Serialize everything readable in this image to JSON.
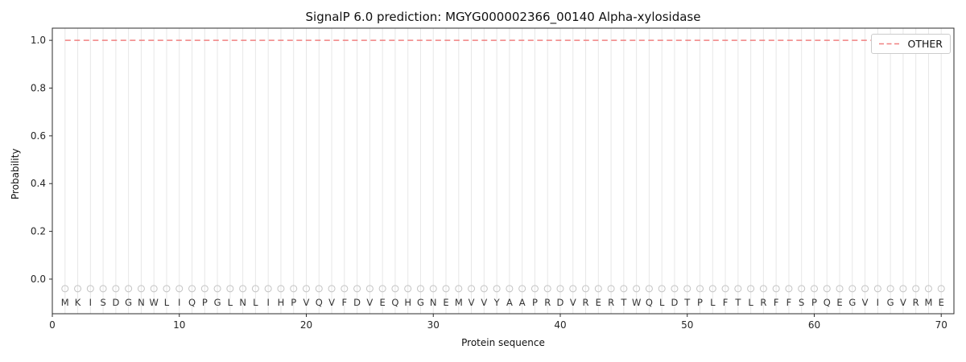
{
  "chart_data": {
    "type": "line",
    "title": "SignalP 6.0 prediction: MGYG000002366_00140 Alpha-xylosidase",
    "xlabel": "Protein sequence",
    "ylabel": "Probability",
    "xlim": [
      0,
      71
    ],
    "ylim": [
      -0.145,
      1.051
    ],
    "xticks": [
      0,
      10,
      20,
      30,
      40,
      50,
      60,
      70
    ],
    "yticks": [
      "0.0",
      "0.2",
      "0.4",
      "0.6",
      "0.8",
      "1.0"
    ],
    "grid": "vertical-per-residue",
    "legend_position": "upper right",
    "sequence": [
      "M",
      "K",
      "I",
      "S",
      "D",
      "G",
      "N",
      "W",
      "L",
      "I",
      "Q",
      "P",
      "G",
      "L",
      "N",
      "L",
      "I",
      "H",
      "P",
      "V",
      "Q",
      "V",
      "F",
      "D",
      "V",
      "E",
      "Q",
      "H",
      "G",
      "N",
      "E",
      "M",
      "V",
      "V",
      "Y",
      "A",
      "A",
      "P",
      "R",
      "D",
      "V",
      "R",
      "E",
      "R",
      "T",
      "W",
      "Q",
      "L",
      "D",
      "T",
      "P",
      "L",
      "F",
      "T",
      "L",
      "R",
      "F",
      "F",
      "S",
      "P",
      "Q",
      "E",
      "G",
      "V",
      "I",
      "G",
      "V",
      "R",
      "M",
      "E"
    ],
    "series": [
      {
        "name": "OTHER",
        "color": "#f08080",
        "line_style": "dashed",
        "values": [
          1.0,
          1.0,
          1.0,
          1.0,
          1.0,
          1.0,
          1.0,
          1.0,
          1.0,
          1.0,
          1.0,
          1.0,
          1.0,
          1.0,
          1.0,
          1.0,
          1.0,
          1.0,
          1.0,
          1.0,
          1.0,
          1.0,
          1.0,
          1.0,
          1.0,
          1.0,
          1.0,
          1.0,
          1.0,
          1.0,
          1.0,
          1.0,
          1.0,
          1.0,
          1.0,
          1.0,
          1.0,
          1.0,
          1.0,
          1.0,
          1.0,
          1.0,
          1.0,
          1.0,
          1.0,
          1.0,
          1.0,
          1.0,
          1.0,
          1.0,
          1.0,
          1.0,
          1.0,
          1.0,
          1.0,
          1.0,
          1.0,
          1.0,
          1.0,
          1.0,
          1.0,
          1.0,
          1.0,
          1.0,
          1.0,
          1.0,
          1.0,
          1.0,
          1.0,
          1.0
        ]
      }
    ],
    "residue_markers": {
      "symbol": "circle",
      "y": -0.04
    },
    "colors": {
      "grid": "#e7e7e7",
      "axis": "#2b2b2b",
      "text": "#262626",
      "marker": "#c4c4c4",
      "letter": "#333333",
      "legend_border": "#cccccc"
    }
  }
}
